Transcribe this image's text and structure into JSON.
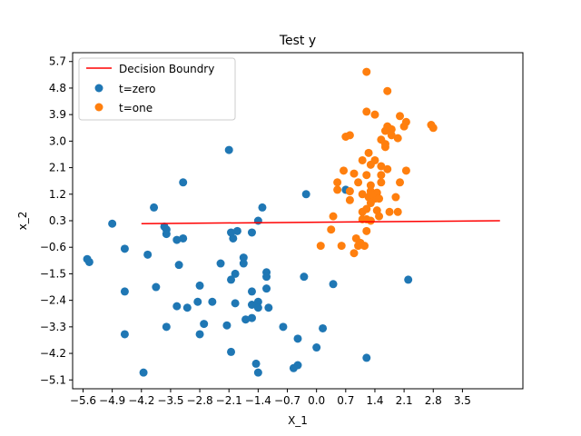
{
  "chart_data": {
    "type": "scatter",
    "title": "Test y",
    "xlabel": "X_1",
    "ylabel": "x_2",
    "xlim": [
      -5.85,
      4.95
    ],
    "ylim": [
      -5.4,
      6.0
    ],
    "x_ticks": [
      -5.6,
      -4.9,
      -4.2,
      -3.5,
      -2.8,
      -2.1,
      -1.4,
      -0.7,
      0.0,
      0.7,
      1.4,
      2.1,
      2.8,
      3.5
    ],
    "x_tick_labels": [
      "−5.6",
      "−4.9",
      "−4.2",
      "−3.5",
      "−2.8",
      "−2.1",
      "−1.4",
      "−0.7",
      "0.0",
      "0.7",
      "1.4",
      "2.1",
      "2.8",
      "3.5"
    ],
    "y_ticks": [
      -5.1,
      -4.2,
      -3.3,
      -2.4,
      -1.5,
      -0.6,
      0.3,
      1.2,
      2.1,
      3.0,
      3.9,
      4.8,
      5.7
    ],
    "y_tick_labels": [
      "−5.1",
      "−4.2",
      "−3.3",
      "−2.4",
      "−1.5",
      "−0.6",
      "0.3",
      "1.2",
      "2.1",
      "3.0",
      "3.9",
      "4.8",
      "5.7"
    ],
    "grid": false,
    "legend_position": "top-left",
    "decision_boundary": {
      "name": "Decision Boundry",
      "color": "#ff0000",
      "x": [
        -4.2,
        4.4
      ],
      "y": [
        0.2,
        0.3
      ]
    },
    "series": [
      {
        "name": "t=zero",
        "color": "#1f77b4",
        "points": [
          [
            -2.1,
            2.7
          ],
          [
            -3.2,
            1.6
          ],
          [
            -3.9,
            0.75
          ],
          [
            -4.9,
            0.2
          ],
          [
            -3.6,
            0.0
          ],
          [
            -3.6,
            -0.15
          ],
          [
            -3.2,
            -0.3
          ],
          [
            -3.35,
            -0.35
          ],
          [
            -2.0,
            -0.3
          ],
          [
            -1.9,
            -0.05
          ],
          [
            -1.55,
            -0.1
          ],
          [
            -2.05,
            -0.1
          ],
          [
            -1.4,
            0.3
          ],
          [
            -1.3,
            0.75
          ],
          [
            -0.25,
            1.2
          ],
          [
            -4.6,
            -0.65
          ],
          [
            -4.05,
            -0.85
          ],
          [
            -5.5,
            -1.0
          ],
          [
            -5.45,
            -1.1
          ],
          [
            -3.3,
            -1.2
          ],
          [
            -2.3,
            -1.15
          ],
          [
            -1.75,
            -0.95
          ],
          [
            -1.75,
            -1.15
          ],
          [
            -1.2,
            -1.45
          ],
          [
            -1.2,
            -1.6
          ],
          [
            -1.95,
            -1.5
          ],
          [
            -2.05,
            -1.7
          ],
          [
            -0.3,
            -1.6
          ],
          [
            0.4,
            -1.85
          ],
          [
            2.2,
            -1.7
          ],
          [
            -4.6,
            -2.1
          ],
          [
            -3.85,
            -1.95
          ],
          [
            -2.8,
            -1.9
          ],
          [
            -1.55,
            -2.1
          ],
          [
            -1.2,
            -2.0
          ],
          [
            -1.4,
            -2.45
          ],
          [
            -1.55,
            -2.55
          ],
          [
            -1.4,
            -2.65
          ],
          [
            -1.15,
            -2.65
          ],
          [
            -1.95,
            -2.5
          ],
          [
            -2.5,
            -2.45
          ],
          [
            -2.85,
            -2.45
          ],
          [
            -3.1,
            -2.65
          ],
          [
            -3.35,
            -2.6
          ],
          [
            -3.6,
            -3.3
          ],
          [
            -2.7,
            -3.2
          ],
          [
            -2.15,
            -3.25
          ],
          [
            -1.7,
            -3.05
          ],
          [
            -1.55,
            -3.0
          ],
          [
            -0.8,
            -3.3
          ],
          [
            0.15,
            -3.35
          ],
          [
            -2.8,
            -3.55
          ],
          [
            -4.6,
            -3.55
          ],
          [
            -0.45,
            -3.7
          ],
          [
            0.0,
            -4.0
          ],
          [
            -2.05,
            -4.15
          ],
          [
            1.2,
            -4.35
          ],
          [
            -1.45,
            -4.55
          ],
          [
            -0.45,
            -4.6
          ],
          [
            -0.55,
            -4.7
          ],
          [
            -4.15,
            -4.85
          ],
          [
            -1.4,
            -4.85
          ],
          [
            0.7,
            1.35
          ],
          [
            -3.65,
            0.1
          ]
        ]
      },
      {
        "name": "t=one",
        "color": "#ff7f0e",
        "points": [
          [
            1.2,
            5.35
          ],
          [
            1.7,
            4.7
          ],
          [
            1.2,
            4.0
          ],
          [
            1.4,
            3.9
          ],
          [
            2.0,
            3.85
          ],
          [
            2.15,
            3.65
          ],
          [
            2.1,
            3.5
          ],
          [
            2.75,
            3.55
          ],
          [
            2.8,
            3.45
          ],
          [
            1.7,
            3.5
          ],
          [
            1.8,
            3.4
          ],
          [
            1.65,
            3.35
          ],
          [
            1.8,
            3.2
          ],
          [
            1.95,
            3.1
          ],
          [
            0.8,
            3.2
          ],
          [
            0.7,
            3.15
          ],
          [
            1.55,
            3.05
          ],
          [
            1.65,
            2.8
          ],
          [
            1.25,
            2.6
          ],
          [
            1.1,
            2.35
          ],
          [
            1.4,
            2.35
          ],
          [
            1.3,
            2.2
          ],
          [
            1.55,
            2.15
          ],
          [
            1.7,
            2.05
          ],
          [
            2.15,
            2.0
          ],
          [
            0.65,
            2.0
          ],
          [
            0.9,
            1.9
          ],
          [
            1.2,
            1.85
          ],
          [
            1.55,
            1.85
          ],
          [
            0.5,
            1.6
          ],
          [
            1.0,
            1.6
          ],
          [
            1.3,
            1.5
          ],
          [
            1.55,
            1.6
          ],
          [
            2.0,
            1.6
          ],
          [
            0.5,
            1.35
          ],
          [
            0.8,
            1.3
          ],
          [
            1.3,
            1.3
          ],
          [
            1.45,
            1.25
          ],
          [
            1.1,
            1.2
          ],
          [
            1.25,
            1.1
          ],
          [
            1.4,
            1.05
          ],
          [
            1.5,
            1.05
          ],
          [
            1.9,
            1.1
          ],
          [
            0.8,
            1.0
          ],
          [
            1.3,
            0.9
          ],
          [
            1.1,
            0.6
          ],
          [
            1.2,
            0.7
          ],
          [
            1.45,
            0.65
          ],
          [
            1.75,
            0.6
          ],
          [
            1.95,
            0.6
          ],
          [
            1.5,
            0.45
          ],
          [
            1.1,
            0.35
          ],
          [
            1.2,
            0.35
          ],
          [
            1.3,
            0.3
          ],
          [
            0.4,
            0.45
          ],
          [
            1.2,
            -0.05
          ],
          [
            0.35,
            0.0
          ],
          [
            0.95,
            -0.3
          ],
          [
            1.05,
            -0.45
          ],
          [
            1.15,
            -0.55
          ],
          [
            0.1,
            -0.55
          ],
          [
            0.6,
            -0.55
          ],
          [
            1.0,
            -0.55
          ],
          [
            0.9,
            -0.8
          ],
          [
            1.3,
            1.2
          ],
          [
            1.65,
            2.9
          ]
        ]
      }
    ]
  }
}
